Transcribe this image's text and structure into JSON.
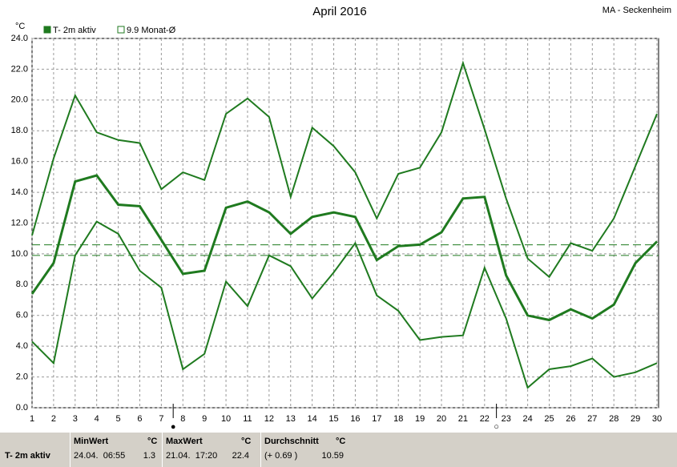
{
  "chart_data": {
    "type": "line",
    "title": "April 2016",
    "station": "MA - Seckenheim",
    "y_unit": "°C",
    "x": [
      1,
      2,
      3,
      4,
      5,
      6,
      7,
      8,
      9,
      10,
      11,
      12,
      13,
      14,
      15,
      16,
      17,
      18,
      19,
      20,
      21,
      22,
      23,
      24,
      25,
      26,
      27,
      28,
      29,
      30
    ],
    "xlim": [
      1,
      30
    ],
    "xticks": [
      1,
      2,
      3,
      4,
      5,
      6,
      7,
      8,
      9,
      10,
      11,
      12,
      13,
      14,
      15,
      16,
      17,
      18,
      19,
      20,
      21,
      22,
      23,
      24,
      25,
      26,
      27,
      28,
      29,
      30
    ],
    "ylim": [
      0,
      24
    ],
    "yticks": [
      {
        "value": 0,
        "label": "0.0"
      },
      {
        "value": 2,
        "label": "2.0"
      },
      {
        "value": 4,
        "label": "4.0"
      },
      {
        "value": 6,
        "label": "6.0"
      },
      {
        "value": 8,
        "label": "8.0"
      },
      {
        "value": 10,
        "label": "10.0"
      },
      {
        "value": 12,
        "label": "12.0"
      },
      {
        "value": 14,
        "label": "14.0"
      },
      {
        "value": 16,
        "label": "16.0"
      },
      {
        "value": 18,
        "label": "18.0"
      },
      {
        "value": 20,
        "label": "20.0"
      },
      {
        "value": 22,
        "label": "22.0"
      },
      {
        "value": 24,
        "label": "24.0"
      }
    ],
    "grid": true,
    "series": [
      {
        "name": "T- 2m aktiv",
        "color": "#1f7a1f",
        "values": [
          7.4,
          9.4,
          14.7,
          15.1,
          13.2,
          13.1,
          10.9,
          8.7,
          8.9,
          13.0,
          13.4,
          12.7,
          11.3,
          12.4,
          12.7,
          12.4,
          9.6,
          10.5,
          10.6,
          11.4,
          13.6,
          13.7,
          8.6,
          6.0,
          5.7,
          6.4,
          5.8,
          6.7,
          9.4,
          10.8
        ]
      },
      {
        "color": "#1f7a1f",
        "values": [
          11.2,
          16.2,
          20.3,
          17.9,
          17.4,
          17.2,
          14.2,
          15.3,
          14.8,
          19.1,
          20.1,
          18.9,
          13.7,
          18.2,
          17.0,
          15.3,
          12.3,
          15.2,
          15.6,
          17.9,
          22.4,
          18.1,
          13.6,
          9.7,
          8.5,
          10.7,
          10.2,
          12.3,
          15.7,
          19.1
        ]
      },
      {
        "color": "#1f7a1f",
        "values": [
          4.3,
          2.9,
          9.9,
          12.1,
          11.3,
          8.9,
          7.8,
          2.5,
          3.5,
          8.2,
          6.6,
          9.9,
          9.2,
          7.1,
          8.8,
          10.7,
          7.3,
          6.3,
          4.4,
          4.6,
          4.7,
          9.1,
          5.8,
          1.3,
          2.5,
          2.7,
          3.2,
          2.0,
          2.3,
          2.9
        ]
      }
    ],
    "reference_lines": [
      {
        "value": 10.59,
        "color": "#1f7a1f"
      },
      {
        "value": 9.9,
        "color": "#1f7a1f",
        "label": "9.9 Monat-Ø"
      }
    ],
    "annotations": [
      {
        "x": 7.55,
        "label": "●"
      },
      {
        "x": 22.55,
        "label": "○"
      }
    ]
  },
  "footer": {
    "row_label": "T- 2m aktiv",
    "cells": [
      {
        "header": "MinWert",
        "unit": "°C",
        "time": "24.04.  06:55",
        "value": "1.3"
      },
      {
        "header": "MaxWert",
        "unit": "°C",
        "time": "21.04.  17:20",
        "value": "22.4"
      },
      {
        "header": "Durchschnitt",
        "unit": "°C",
        "time": "(+ 0.69 )",
        "value": "10.59"
      }
    ]
  }
}
